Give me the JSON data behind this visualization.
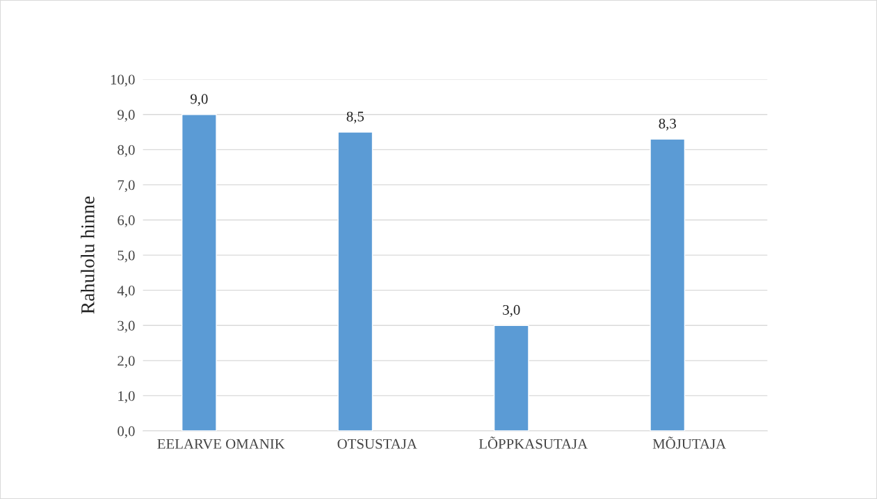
{
  "chart_data": {
    "type": "bar",
    "ylabel": "Rahulolu hinne",
    "categories": [
      "EELARVE OMANIK",
      "OTSUSTAJA",
      "LÕPPKASUTAJA",
      "MÕJUTAJA"
    ],
    "values": [
      9.0,
      8.5,
      3.0,
      8.3
    ],
    "color": "#5b9bd5",
    "value_labels": [
      "9,0",
      "8,5",
      "3,0",
      "8,3"
    ],
    "ylim": [
      0,
      10
    ],
    "yticks": [
      {
        "value": 0,
        "label": "0,0"
      },
      {
        "value": 1,
        "label": "1,0"
      },
      {
        "value": 2,
        "label": "2,0"
      },
      {
        "value": 3,
        "label": "3,0"
      },
      {
        "value": 4,
        "label": "4,0"
      },
      {
        "value": 5,
        "label": "5,0"
      },
      {
        "value": 6,
        "label": "6,0"
      },
      {
        "value": 7,
        "label": "7,0"
      },
      {
        "value": 8,
        "label": "8,0"
      },
      {
        "value": 9,
        "label": "9,0"
      },
      {
        "value": 10,
        "label": "10,0"
      }
    ],
    "grid": "y",
    "legend": false
  }
}
